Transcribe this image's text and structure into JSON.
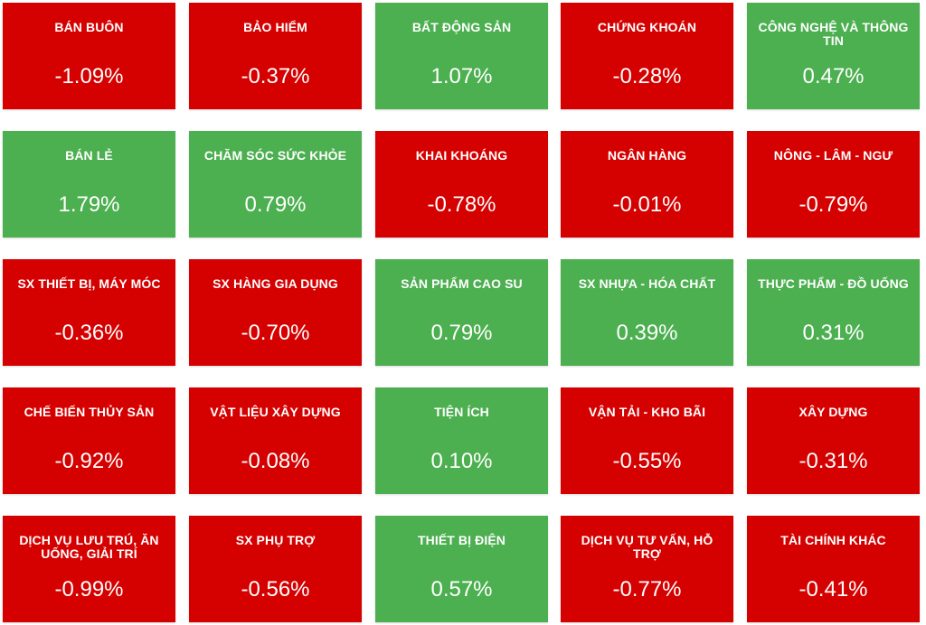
{
  "colors": {
    "negative": "#d50000",
    "positive": "#4caf50",
    "text": "#ffffff"
  },
  "sectors": [
    {
      "name": "BÁN BUÔN",
      "change": "-1.09%",
      "direction": "negative"
    },
    {
      "name": "BẢO HIỂM",
      "change": "-0.37%",
      "direction": "negative"
    },
    {
      "name": "BẤT ĐỘNG SẢN",
      "change": "1.07%",
      "direction": "positive"
    },
    {
      "name": "CHỨNG KHOÁN",
      "change": "-0.28%",
      "direction": "negative"
    },
    {
      "name": "CÔNG NGHỆ VÀ THÔNG TIN",
      "change": "0.47%",
      "direction": "positive"
    },
    {
      "name": "BÁN LẺ",
      "change": "1.79%",
      "direction": "positive"
    },
    {
      "name": "CHĂM SÓC SỨC KHỎE",
      "change": "0.79%",
      "direction": "positive"
    },
    {
      "name": "KHAI KHOÁNG",
      "change": "-0.78%",
      "direction": "negative"
    },
    {
      "name": "NGÂN HÀNG",
      "change": "-0.01%",
      "direction": "negative"
    },
    {
      "name": "NÔNG - LÂM - NGƯ",
      "change": "-0.79%",
      "direction": "negative"
    },
    {
      "name": "SX THIẾT BỊ, MÁY MÓC",
      "change": "-0.36%",
      "direction": "negative"
    },
    {
      "name": "SX HÀNG GIA DỤNG",
      "change": "-0.70%",
      "direction": "negative"
    },
    {
      "name": "SẢN PHẨM CAO SU",
      "change": "0.79%",
      "direction": "positive"
    },
    {
      "name": "SX NHỰA - HÓA CHẤT",
      "change": "0.39%",
      "direction": "positive"
    },
    {
      "name": "THỰC PHẨM - ĐỒ UỐNG",
      "change": "0.31%",
      "direction": "positive"
    },
    {
      "name": "CHẾ BIẾN THỦY SẢN",
      "change": "-0.92%",
      "direction": "negative"
    },
    {
      "name": "VẬT LIỆU XÂY DỰNG",
      "change": "-0.08%",
      "direction": "negative"
    },
    {
      "name": "TIỆN ÍCH",
      "change": "0.10%",
      "direction": "positive"
    },
    {
      "name": "VẬN TẢI - KHO BÃI",
      "change": "-0.55%",
      "direction": "negative"
    },
    {
      "name": "XÂY DỰNG",
      "change": "-0.31%",
      "direction": "negative"
    },
    {
      "name": "DỊCH VỤ LƯU TRÚ, ĂN UỐNG, GIẢI TRÍ",
      "change": "-0.99%",
      "direction": "negative"
    },
    {
      "name": "SX PHỤ TRỢ",
      "change": "-0.56%",
      "direction": "negative"
    },
    {
      "name": "THIẾT BỊ ĐIỆN",
      "change": "0.57%",
      "direction": "positive"
    },
    {
      "name": "DỊCH VỤ TƯ VẤN, HỖ TRỢ",
      "change": "-0.77%",
      "direction": "negative"
    },
    {
      "name": "TÀI CHÍNH KHÁC",
      "change": "-0.41%",
      "direction": "negative"
    }
  ]
}
